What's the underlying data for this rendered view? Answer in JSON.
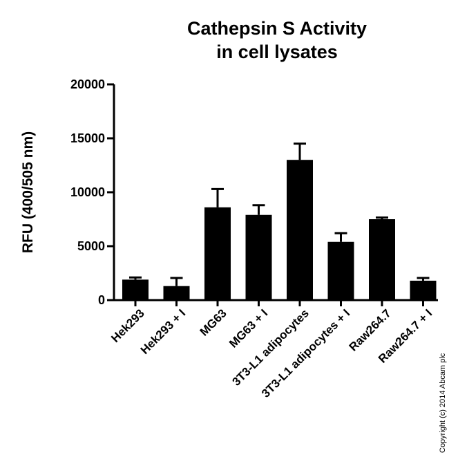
{
  "chart_data": {
    "type": "bar",
    "title_line1": "Cathepsin S Activity",
    "title_line2": "in cell lysates",
    "xlabel": "",
    "ylabel": "RFU (400/505 nm)",
    "ylim": [
      0,
      20000
    ],
    "yticks": [
      0,
      5000,
      10000,
      15000,
      20000
    ],
    "yticklabels": [
      "0",
      "5000",
      "10000",
      "15000",
      "20000"
    ],
    "categories": [
      "Hek293",
      "Hek293 + I",
      "MG63",
      "MG63 + I",
      "3T3-L1 adipocytes",
      "3T3-L1 adipocytes + I",
      "Raw264.7",
      "Raw264.7 + I"
    ],
    "values": [
      1900,
      1300,
      8600,
      7900,
      13000,
      5400,
      7500,
      1800
    ],
    "errors": [
      200,
      750,
      1700,
      900,
      1500,
      800,
      150,
      250
    ],
    "bar_color": "#000000",
    "grid": false,
    "legend": "none"
  },
  "copyright": "Copyright (c) 2014 Abcam plc"
}
